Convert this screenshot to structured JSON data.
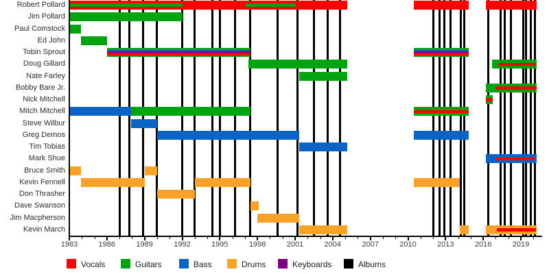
{
  "palette": {
    "vocals": "#fe0000",
    "guitars": "#00a410",
    "bass": "#0b63c4",
    "drums": "#f9a228",
    "keyboards": "#800080",
    "albums": "#000000"
  },
  "legend": {
    "items": [
      {
        "label": "Vocals",
        "role": "vocals"
      },
      {
        "label": "Guitars",
        "role": "guitars"
      },
      {
        "label": "Bass",
        "role": "bass"
      },
      {
        "label": "Drums",
        "role": "drums"
      },
      {
        "label": "Keyboards",
        "role": "keyboards"
      },
      {
        "label": "Albums",
        "role": "albums"
      }
    ]
  },
  "axis": {
    "start_year": 1983,
    "end_year": 2020.6,
    "major_ticks": [
      1983,
      1986,
      1989,
      1992,
      1995,
      1998,
      2001,
      2004,
      2007,
      2010,
      2013,
      2016,
      2019
    ],
    "minor_tick_step": 1
  },
  "chart_data": {
    "type": "bar",
    "subtype": "band-membership-timeline",
    "xlabel": "",
    "ylabel": "",
    "grid": false,
    "legend_position": "bottom",
    "rows": [
      {
        "name": "Robert Pollard",
        "bars": [
          {
            "start": 1983,
            "end": 2005.15,
            "base": "vocals",
            "stripes": [
              {
                "role": "guitars",
                "start": 1983,
                "end": 1992
              },
              {
                "role": "guitars",
                "start": 1997.05,
                "end": 2001.05
              }
            ]
          },
          {
            "start": 2010.45,
            "end": 2014.85,
            "base": "vocals"
          },
          {
            "start": 2016.2,
            "end": 2020.25,
            "base": "vocals"
          }
        ]
      },
      {
        "name": "Jim Pollard",
        "bars": [
          {
            "start": 1983,
            "end": 1992,
            "base": "guitars"
          }
        ]
      },
      {
        "name": "Paul Comstock",
        "bars": [
          {
            "start": 1983,
            "end": 1983.95,
            "base": "guitars"
          }
        ]
      },
      {
        "name": "Ed John",
        "bars": [
          {
            "start": 1983.95,
            "end": 1986,
            "base": "guitars"
          }
        ]
      },
      {
        "name": "Tobin Sprout",
        "bars": [
          {
            "start": 1986,
            "end": 1997.45,
            "base": "guitars",
            "stack": [
              "bass",
              "keyboards",
              "vocals"
            ]
          },
          {
            "start": 2010.45,
            "end": 2014.85,
            "base": "guitars",
            "stack": [
              "bass",
              "keyboards",
              "vocals"
            ]
          }
        ]
      },
      {
        "name": "Doug Gillard",
        "bars": [
          {
            "start": 1997.3,
            "end": 2005.15,
            "base": "guitars"
          },
          {
            "start": 2016.7,
            "end": 2020.25,
            "base": "guitars",
            "stripes": [
              {
                "role": "vocals",
                "start": 2017.2,
                "end": 2020.2
              }
            ]
          }
        ]
      },
      {
        "name": "Nate Farley",
        "bars": [
          {
            "start": 2001.35,
            "end": 2005.15,
            "base": "guitars"
          }
        ]
      },
      {
        "name": "Bobby Bare Jr.",
        "bars": [
          {
            "start": 2016.2,
            "end": 2020.25,
            "base": "guitars",
            "stripes": [
              {
                "role": "vocals",
                "start": 2017.0,
                "end": 2020.25
              }
            ]
          }
        ]
      },
      {
        "name": "Nick Mitchell",
        "bars": [
          {
            "start": 2016.2,
            "end": 2016.75,
            "base": "guitars",
            "stripes": [
              {
                "role": "vocals"
              }
            ]
          }
        ]
      },
      {
        "name": "Mitch Mitchell",
        "bars": [
          {
            "start": 1983,
            "end": 1987.9,
            "base": "bass"
          },
          {
            "start": 1987.9,
            "end": 1997.45,
            "base": "guitars"
          },
          {
            "start": 2010.45,
            "end": 2014.85,
            "base": "guitars",
            "stripes": [
              {
                "role": "vocals"
              }
            ]
          }
        ]
      },
      {
        "name": "Steve Wilbur",
        "bars": [
          {
            "start": 1987.9,
            "end": 1990,
            "base": "bass"
          }
        ]
      },
      {
        "name": "Greg Demos",
        "bars": [
          {
            "start": 1990,
            "end": 2001.35,
            "base": "bass"
          },
          {
            "start": 2010.45,
            "end": 2014.85,
            "base": "bass"
          }
        ]
      },
      {
        "name": "Tim Tobias",
        "bars": [
          {
            "start": 2001.35,
            "end": 2005.15,
            "base": "bass"
          }
        ]
      },
      {
        "name": "Mark Shue",
        "bars": [
          {
            "start": 2016.2,
            "end": 2020.25,
            "base": "bass",
            "stripes": [
              {
                "role": "vocals",
                "start": 2017.0,
                "end": 2020.2
              }
            ]
          }
        ]
      },
      {
        "name": "Bruce Smith",
        "bars": [
          {
            "start": 1983,
            "end": 1983.95,
            "base": "drums"
          },
          {
            "start": 1989,
            "end": 1990,
            "base": "drums"
          }
        ]
      },
      {
        "name": "Kevin Fennell",
        "bars": [
          {
            "start": 1983.95,
            "end": 1989,
            "base": "drums"
          },
          {
            "start": 1993,
            "end": 1997.45,
            "base": "drums"
          },
          {
            "start": 2010.45,
            "end": 2014.15,
            "base": "drums"
          }
        ]
      },
      {
        "name": "Don Thrasher",
        "bars": [
          {
            "start": 1990,
            "end": 1993,
            "base": "drums"
          }
        ]
      },
      {
        "name": "Dave Swanson",
        "bars": [
          {
            "start": 1997.45,
            "end": 1998.1,
            "base": "drums"
          }
        ]
      },
      {
        "name": "Jim Macpherson",
        "bars": [
          {
            "start": 1998,
            "end": 2001.35,
            "base": "drums"
          }
        ]
      },
      {
        "name": "Kevin March",
        "bars": [
          {
            "start": 2001.35,
            "end": 2005.15,
            "base": "drums"
          },
          {
            "start": 2014.15,
            "end": 2014.85,
            "base": "drums"
          },
          {
            "start": 2016.2,
            "end": 2020.25,
            "base": "drums",
            "stripes": [
              {
                "role": "vocals",
                "start": 2017.1,
                "end": 2020.2
              }
            ]
          }
        ]
      }
    ],
    "album_release_years": [
      1987.0,
      1987.8,
      1988.9,
      1990.0,
      1992.0,
      1993.0,
      1994.4,
      1995.0,
      1996.2,
      1997.4,
      1999.6,
      2001.2,
      2002.5,
      2003.6,
      2004.6,
      2012.0,
      2012.5,
      2012.9,
      2013.4,
      2014.2,
      2014.5,
      2016.4,
      2017.4,
      2017.7,
      2018.2,
      2019.2,
      2019.4,
      2019.8,
      2020.1
    ]
  }
}
